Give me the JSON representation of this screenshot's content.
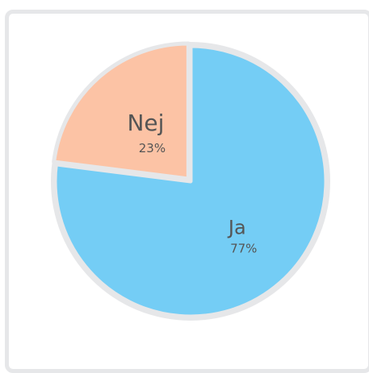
{
  "chart_data": {
    "type": "pie",
    "categories": [
      "Ja",
      "Nej"
    ],
    "values": [
      77,
      23
    ],
    "value_labels": [
      "77%",
      "23%"
    ],
    "colors": [
      "#74cdf5",
      "#fcc3a5"
    ]
  }
}
